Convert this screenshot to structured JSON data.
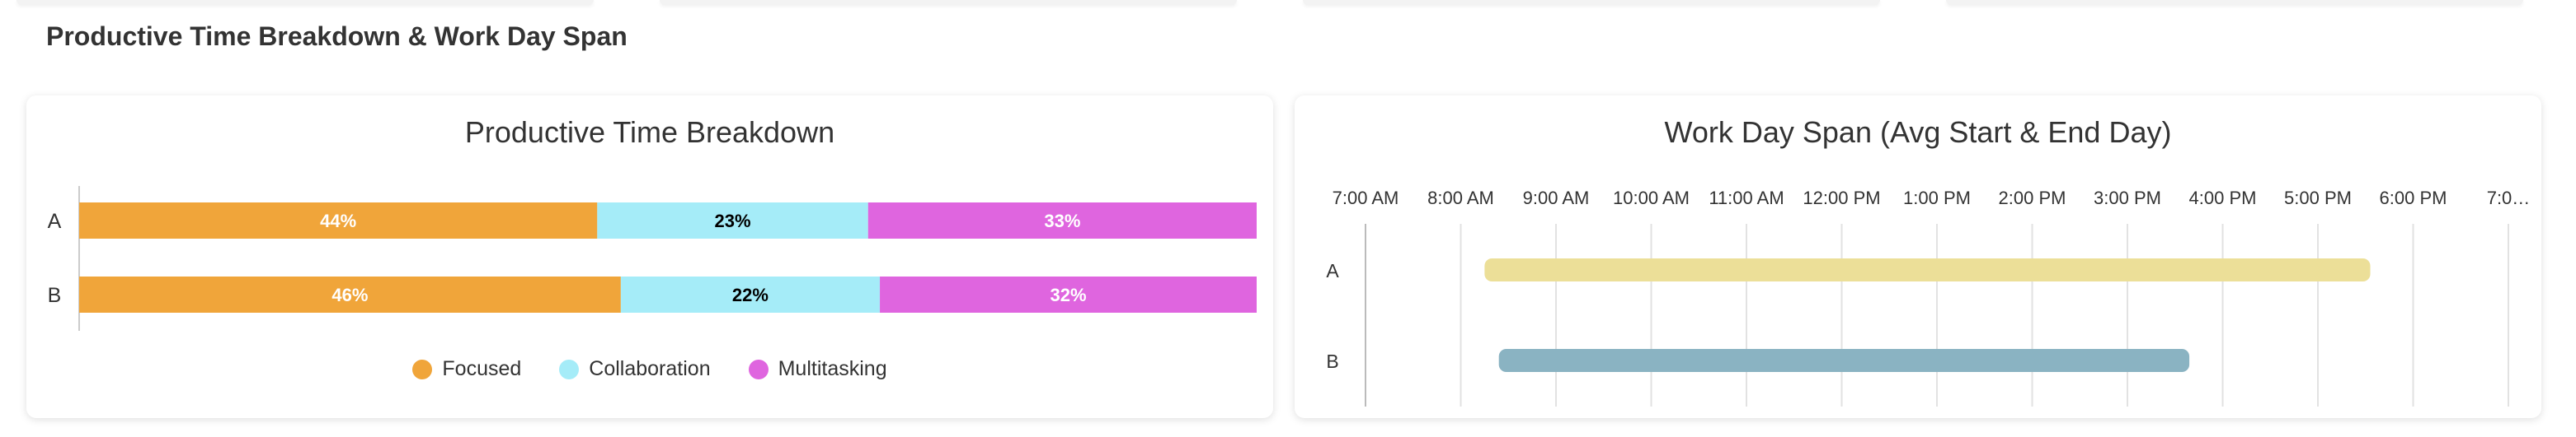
{
  "section": {
    "title": "Productive Time Breakdown & Work Day Span"
  },
  "colors": {
    "focused": "#f0a53a",
    "collaboration": "#a5ecf8",
    "multitasking": "#df65df",
    "span_a": "#ecdf98",
    "span_b": "#8ab3c2"
  },
  "chart_data": [
    {
      "type": "bar",
      "orientation": "horizontal",
      "stacked": true,
      "title": "Productive Time Breakdown",
      "categories": [
        "A",
        "B"
      ],
      "series": [
        {
          "name": "Focused",
          "values": [
            44,
            46
          ],
          "labels": [
            "44%",
            "46%"
          ]
        },
        {
          "name": "Collaboration",
          "values": [
            23,
            22
          ],
          "labels": [
            "23%",
            "22%"
          ]
        },
        {
          "name": "Multitasking",
          "values": [
            33,
            32
          ],
          "labels": [
            "33%",
            "32%"
          ]
        }
      ],
      "xlim": [
        0,
        100
      ],
      "legend": "bottom-center",
      "grid": false
    },
    {
      "type": "bar",
      "orientation": "horizontal",
      "range": true,
      "title": "Work Day Span (Avg Start & End Day)",
      "categories": [
        "A",
        "B"
      ],
      "spans": [
        {
          "category": "A",
          "start": 8.25,
          "end": 17.55
        },
        {
          "category": "B",
          "start": 8.4,
          "end": 15.65
        }
      ],
      "xlim": [
        7,
        19
      ],
      "xticks": [
        7,
        8,
        9,
        10,
        11,
        12,
        13,
        14,
        15,
        16,
        17,
        18,
        19
      ],
      "xtick_labels": [
        "7:00 AM",
        "8:00 AM",
        "9:00 AM",
        "10:00 AM",
        "11:00 AM",
        "12:00 PM",
        "1:00 PM",
        "2:00 PM",
        "3:00 PM",
        "4:00 PM",
        "5:00 PM",
        "6:00 PM",
        "7:0…"
      ],
      "tick_position": "top",
      "grid": true
    }
  ]
}
